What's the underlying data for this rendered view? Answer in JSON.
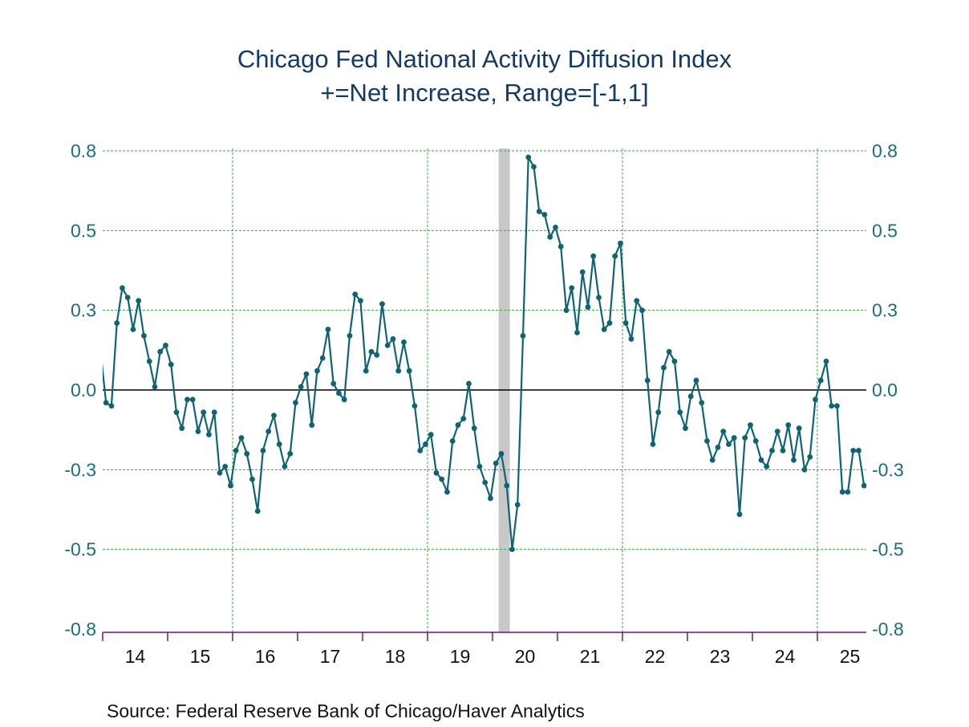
{
  "chart_data": {
    "type": "line",
    "title": "Chicago Fed National Activity Diffusion Index",
    "subtitle": "+=Net Increase, Range=[-1,1]",
    "xlabel": "",
    "ylabel": "",
    "source": "Source:  Federal Reserve Bank of Chicago/Haver Analytics",
    "frequency": "monthly",
    "start": "2014-01",
    "end": "2025-09",
    "xlim_years": [
      2014,
      2025.75
    ],
    "ylim": [
      -0.75,
      0.75
    ],
    "y_ticks": [
      {
        "value": 0.75,
        "label": "0.8"
      },
      {
        "value": 0.5,
        "label": "0.5"
      },
      {
        "value": 0.25,
        "label": "0.3"
      },
      {
        "value": 0.0,
        "label": "0.0"
      },
      {
        "value": -0.25,
        "label": "-0.3"
      },
      {
        "value": -0.5,
        "label": "-0.5"
      },
      {
        "value": -0.75,
        "label": "-0.8"
      }
    ],
    "x_ticks": [
      "14",
      "15",
      "16",
      "17",
      "18",
      "19",
      "20",
      "21",
      "22",
      "23",
      "24",
      "25"
    ],
    "vertical_gridlines_years": [
      2016,
      2019,
      2022,
      2025
    ],
    "grid": true,
    "zero_line": true,
    "recession_shading": [
      {
        "start": "2020-02",
        "end": "2020-04"
      }
    ],
    "colors": {
      "series": "#0e6472",
      "grid": "#3aa63a",
      "axis": "#6b1a6b",
      "recession": "#c8c8c8",
      "tick_label": "#1a6e7a",
      "title": "#123a66"
    },
    "prior_value_clipped": {
      "month": "2013-12",
      "value": 0.12
    },
    "series": [
      {
        "name": "Chicago Fed National Activity Diffusion Index",
        "values": [
          -0.04,
          -0.05,
          0.21,
          0.32,
          0.29,
          0.19,
          0.28,
          0.17,
          0.09,
          0.01,
          0.12,
          0.14,
          0.08,
          -0.07,
          -0.12,
          -0.03,
          -0.03,
          -0.13,
          -0.07,
          -0.14,
          -0.07,
          -0.26,
          -0.24,
          -0.3,
          -0.19,
          -0.15,
          -0.2,
          -0.28,
          -0.38,
          -0.19,
          -0.13,
          -0.08,
          -0.17,
          -0.24,
          -0.2,
          -0.04,
          0.01,
          0.05,
          -0.11,
          0.06,
          0.1,
          0.19,
          0.02,
          -0.01,
          -0.03,
          0.17,
          0.3,
          0.28,
          0.06,
          0.12,
          0.11,
          0.27,
          0.14,
          0.16,
          0.06,
          0.15,
          0.06,
          -0.05,
          -0.19,
          -0.17,
          -0.14,
          -0.26,
          -0.28,
          -0.32,
          -0.16,
          -0.11,
          -0.09,
          0.02,
          -0.12,
          -0.24,
          -0.29,
          -0.34,
          -0.23,
          -0.2,
          -0.3,
          -0.5,
          -0.36,
          0.17,
          0.73,
          0.7,
          0.56,
          0.55,
          0.48,
          0.51,
          0.45,
          0.25,
          0.32,
          0.18,
          0.37,
          0.26,
          0.42,
          0.29,
          0.19,
          0.21,
          0.42,
          0.46,
          0.21,
          0.16,
          0.28,
          0.25,
          0.03,
          -0.17,
          -0.07,
          0.07,
          0.12,
          0.09,
          -0.07,
          -0.12,
          -0.02,
          0.03,
          -0.04,
          -0.16,
          -0.22,
          -0.18,
          -0.13,
          -0.17,
          -0.15,
          -0.39,
          -0.15,
          -0.11,
          -0.16,
          -0.22,
          -0.24,
          -0.19,
          -0.13,
          -0.19,
          -0.11,
          -0.22,
          -0.12,
          -0.25,
          -0.21,
          -0.03,
          0.03,
          0.09,
          -0.05,
          -0.05,
          -0.32,
          -0.32,
          -0.19,
          -0.19,
          -0.3
        ]
      }
    ]
  }
}
